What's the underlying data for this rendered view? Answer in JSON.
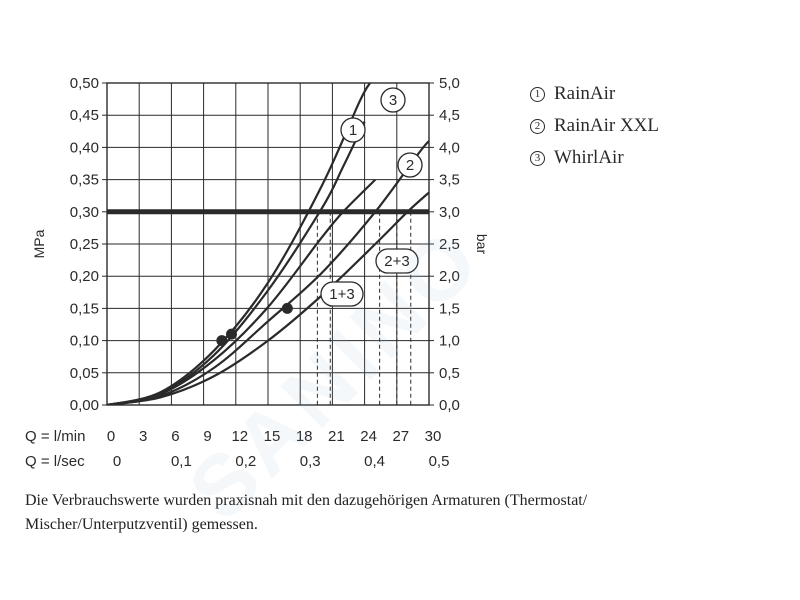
{
  "chart_data": {
    "type": "line",
    "left_axis": {
      "label": "MPa",
      "ticks": [
        "0,00",
        "0,05",
        "0,10",
        "0,15",
        "0,20",
        "0,25",
        "0,30",
        "0,35",
        "0,40",
        "0,45",
        "0,50"
      ],
      "range": [
        0,
        0.5
      ]
    },
    "right_axis": {
      "label": "bar",
      "ticks": [
        "0,0",
        "0,5",
        "1,0",
        "1,5",
        "2,0",
        "2,5",
        "3,0",
        "3,5",
        "4,0",
        "4,5",
        "5,0"
      ],
      "range": [
        0,
        5
      ]
    },
    "x_axis_lmin": {
      "label": "Q = l/min",
      "ticks": [
        "0",
        "3",
        "6",
        "9",
        "12",
        "15",
        "18",
        "21",
        "24",
        "27",
        "30"
      ],
      "range": [
        0,
        30
      ]
    },
    "x_axis_lsec": {
      "label": "Q = l/sec",
      "ticks": [
        "0",
        "0,1",
        "0,2",
        "0,3",
        "0,4",
        "0,5"
      ],
      "tick_values": [
        0,
        6,
        12,
        18,
        24,
        30
      ]
    },
    "reference_line": {
      "pressure_mpa": 0.3
    },
    "series": [
      {
        "name": "1",
        "label": "1",
        "x": [
          0,
          5,
          10,
          15,
          20,
          22,
          24
        ],
        "y": [
          0,
          0.018,
          0.078,
          0.178,
          0.305,
          0.37,
          0.44
        ]
      },
      {
        "name": "3",
        "label": "3",
        "x": [
          0,
          5,
          10,
          15,
          20,
          23.5,
          24.5
        ],
        "y": [
          0,
          0.02,
          0.085,
          0.19,
          0.34,
          0.47,
          0.5
        ]
      },
      {
        "name": "2",
        "label": "2",
        "x": [
          0,
          5,
          10,
          15,
          20,
          25,
          29,
          30
        ],
        "y": [
          0,
          0.014,
          0.058,
          0.13,
          0.205,
          0.3,
          0.39,
          0.41
        ]
      },
      {
        "name": "1+3",
        "label": "1+3",
        "x": [
          0,
          5,
          10,
          15,
          20,
          22,
          25
        ],
        "y": [
          0,
          0.017,
          0.07,
          0.152,
          0.26,
          0.3,
          0.35
        ]
      },
      {
        "name": "2+3",
        "label": "2+3",
        "x": [
          0,
          5,
          10,
          15,
          20,
          25,
          28,
          30
        ],
        "y": [
          0,
          0.012,
          0.045,
          0.1,
          0.17,
          0.25,
          0.3,
          0.33
        ]
      }
    ],
    "markers": [
      {
        "x": 10.7,
        "y": 0.1
      },
      {
        "x": 11.6,
        "y": 0.11
      },
      {
        "x": 16.8,
        "y": 0.15
      }
    ],
    "crossing_lines_lmin": [
      19.6,
      20.8,
      25.4,
      27.0,
      28.3
    ],
    "grid": true
  },
  "legend": [
    {
      "marker": "1",
      "label": "RainAir"
    },
    {
      "marker": "2",
      "label": "RainAir XXL"
    },
    {
      "marker": "3",
      "label": "WhirlAir"
    }
  ],
  "note": "Die Verbrauchswerte wurden praxisnah mit den dazugehörigen Armaturen (Thermostat/ Mischer/Unterputzventil) gemessen.",
  "watermark": "SANINO",
  "colors": {
    "ink": "#2a2a2a",
    "background": "#ffffff"
  }
}
